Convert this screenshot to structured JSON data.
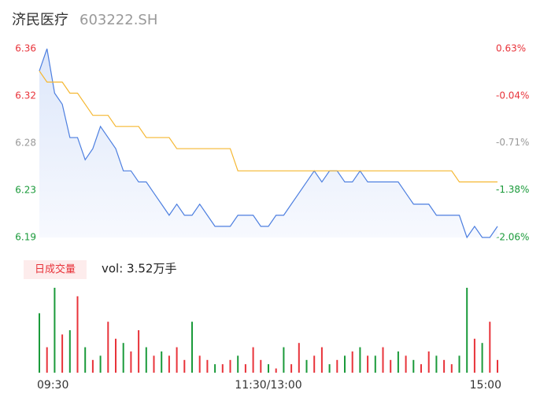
{
  "header": {
    "title": "济民医疗",
    "code": "603222.SH"
  },
  "chart_data": {
    "type": "intraday",
    "x": [
      0,
      4,
      8,
      12,
      16,
      20,
      24,
      28,
      32,
      36,
      40,
      44,
      48,
      52,
      56,
      60,
      64,
      68,
      72,
      76,
      80,
      84,
      88,
      92,
      96,
      100,
      104,
      108,
      112,
      116,
      120,
      124,
      128,
      132,
      136,
      140,
      144,
      148,
      152,
      156,
      160,
      164,
      168,
      172,
      176,
      180,
      184,
      188,
      192,
      196,
      200,
      204,
      208,
      212,
      216,
      220,
      224,
      228,
      232,
      236,
      240
    ],
    "xlim": [
      0,
      240
    ],
    "xticks": [
      {
        "value": 0,
        "label": "09:30"
      },
      {
        "value": 120,
        "label": "11:30/13:00"
      },
      {
        "value": 240,
        "label": "15:00"
      }
    ],
    "series": [
      {
        "color": "#4d7fe0",
        "values": [
          6.34,
          6.36,
          6.32,
          6.31,
          6.28,
          6.28,
          6.26,
          6.27,
          6.29,
          6.28,
          6.27,
          6.25,
          6.25,
          6.24,
          6.24,
          6.23,
          6.22,
          6.21,
          6.22,
          6.21,
          6.21,
          6.22,
          6.21,
          6.2,
          6.2,
          6.2,
          6.21,
          6.21,
          6.21,
          6.2,
          6.2,
          6.21,
          6.21,
          6.22,
          6.23,
          6.24,
          6.25,
          6.24,
          6.25,
          6.25,
          6.24,
          6.24,
          6.25,
          6.24,
          6.24,
          6.24,
          6.24,
          6.24,
          6.23,
          6.22,
          6.22,
          6.22,
          6.21,
          6.21,
          6.21,
          6.21,
          6.19,
          6.2,
          6.19,
          6.19,
          6.2
        ]
      },
      {
        "color": "#f5b731",
        "values": [
          6.34,
          6.33,
          6.33,
          6.33,
          6.32,
          6.32,
          6.31,
          6.3,
          6.3,
          6.3,
          6.29,
          6.29,
          6.29,
          6.29,
          6.28,
          6.28,
          6.28,
          6.28,
          6.27,
          6.27,
          6.27,
          6.27,
          6.27,
          6.27,
          6.27,
          6.27,
          6.25,
          6.25,
          6.25,
          6.25,
          6.25,
          6.25,
          6.25,
          6.25,
          6.25,
          6.25,
          6.25,
          6.25,
          6.25,
          6.25,
          6.25,
          6.25,
          6.25,
          6.25,
          6.25,
          6.25,
          6.25,
          6.25,
          6.25,
          6.25,
          6.25,
          6.25,
          6.25,
          6.25,
          6.25,
          6.24,
          6.24,
          6.24,
          6.24,
          6.24,
          6.24
        ]
      }
    ],
    "ylim": [
      6.19,
      6.36
    ],
    "yticks": [
      {
        "value": 6.36,
        "label": "6.36"
      },
      {
        "value": 6.3175,
        "label": "6.32"
      },
      {
        "value": 6.275,
        "label": "6.28"
      },
      {
        "value": 6.2325,
        "label": "6.23"
      },
      {
        "value": 6.19,
        "label": "6.19"
      }
    ],
    "ytick_colors": [
      "#e8333a",
      "#e8333a",
      "#999999",
      "#1a9a3a",
      "#1a9a3a"
    ],
    "y2lim": [
      -2.06,
      0.63
    ],
    "y2ticks": [
      {
        "value": 0.63,
        "label": "0.63%"
      },
      {
        "value": -0.04,
        "label": "-0.04%"
      },
      {
        "value": -0.71,
        "label": "-0.71%"
      },
      {
        "value": -1.38,
        "label": "-1.38%"
      },
      {
        "value": -2.06,
        "label": "-2.06%"
      }
    ],
    "volume": {
      "tag": "日成交量",
      "summary": "vol: 3.52万手",
      "values": [
        70,
        30,
        100,
        45,
        50,
        90,
        30,
        15,
        20,
        60,
        40,
        35,
        25,
        50,
        30,
        20,
        25,
        20,
        30,
        15,
        60,
        20,
        15,
        10,
        10,
        15,
        20,
        10,
        30,
        15,
        10,
        5,
        30,
        10,
        35,
        15,
        20,
        30,
        10,
        15,
        20,
        25,
        30,
        20,
        20,
        30,
        15,
        25,
        20,
        15,
        10,
        25,
        20,
        15,
        10,
        20,
        100,
        40,
        35,
        60,
        15
      ],
      "colors": [
        "#1a9a3a",
        "#e8333a",
        "#1a9a3a",
        "#e8333a",
        "#1a9a3a",
        "#e8333a",
        "#1a9a3a",
        "#e8333a",
        "#1a9a3a",
        "#e8333a",
        "#e8333a",
        "#1a9a3a",
        "#e8333a",
        "#e8333a",
        "#1a9a3a",
        "#e8333a",
        "#1a9a3a",
        "#e8333a",
        "#e8333a",
        "#e8333a",
        "#1a9a3a",
        "#e8333a",
        "#e8333a",
        "#1a9a3a",
        "#e8333a",
        "#e8333a",
        "#1a9a3a",
        "#e8333a",
        "#e8333a",
        "#e8333a",
        "#1a9a3a",
        "#e8333a",
        "#1a9a3a",
        "#e8333a",
        "#e8333a",
        "#1a9a3a",
        "#e8333a",
        "#e8333a",
        "#1a9a3a",
        "#e8333a",
        "#1a9a3a",
        "#e8333a",
        "#1a9a3a",
        "#e8333a",
        "#1a9a3a",
        "#e8333a",
        "#e8333a",
        "#1a9a3a",
        "#e8333a",
        "#1a9a3a",
        "#e8333a",
        "#e8333a",
        "#1a9a3a",
        "#e8333a",
        "#e8333a",
        "#1a9a3a",
        "#1a9a3a",
        "#e8333a",
        "#1a9a3a",
        "#e8333a",
        "#e8333a"
      ]
    }
  }
}
